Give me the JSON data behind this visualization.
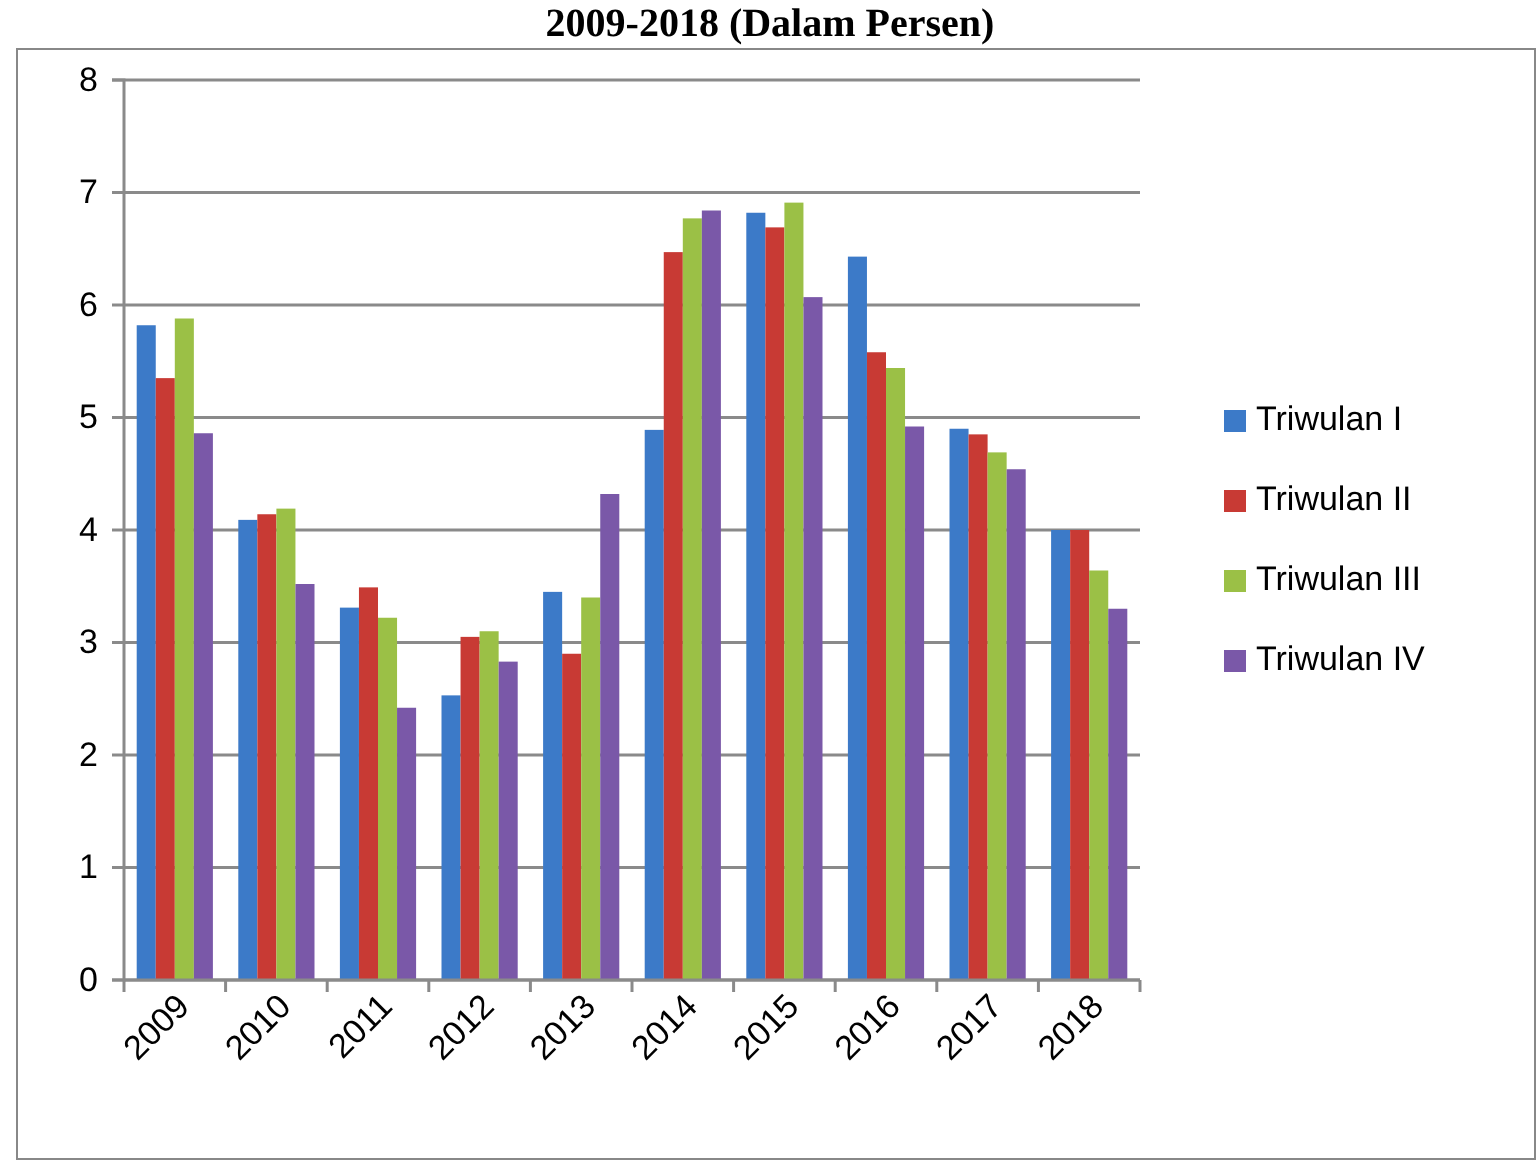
{
  "chart_data": {
    "type": "bar",
    "title": "2009-2018 (Dalam Persen)",
    "categories": [
      "2009",
      "2010",
      "2011",
      "2012",
      "2013",
      "2014",
      "2015",
      "2016",
      "2017",
      "2018"
    ],
    "series": [
      {
        "name": "Triwulan I",
        "color": "#3c7ac8",
        "values": [
          5.82,
          4.09,
          3.31,
          2.53,
          3.45,
          4.89,
          6.82,
          6.43,
          4.9,
          4.0
        ]
      },
      {
        "name": "Triwulan II",
        "color": "#c83a34",
        "values": [
          5.35,
          4.14,
          3.49,
          3.05,
          2.9,
          6.47,
          6.69,
          5.58,
          4.85,
          4.0
        ]
      },
      {
        "name": "Triwulan III",
        "color": "#9bc046",
        "values": [
          5.88,
          4.19,
          3.22,
          3.1,
          3.4,
          6.77,
          6.91,
          5.44,
          4.69,
          3.64
        ]
      },
      {
        "name": "Triwulan IV",
        "color": "#7a58a8",
        "values": [
          4.86,
          3.52,
          2.42,
          2.83,
          4.32,
          6.84,
          6.07,
          4.92,
          4.54,
          3.3
        ]
      }
    ],
    "ylim": [
      0,
      8
    ],
    "yticks": [
      0,
      1,
      2,
      3,
      4,
      5,
      6,
      7,
      8
    ],
    "grid": "y",
    "legend": "right"
  }
}
